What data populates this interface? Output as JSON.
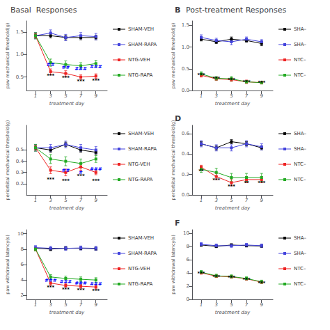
{
  "chart_data": [
    {
      "type": "line",
      "title": "Basal  Responses",
      "xlabel": "treatment day",
      "ylabel": "paw mechanical threshold(g)",
      "x": [
        1,
        3,
        5,
        7,
        9
      ],
      "xlim": [
        -0.2,
        10.5
      ],
      "xticks": [
        1,
        3,
        5,
        7,
        9
      ],
      "ylim": [
        0.2,
        1.75
      ],
      "yticks": [
        0.5,
        {
          "value": 1,
          "label": "1.0"
        },
        1.5
      ],
      "grid": false,
      "legend": "right",
      "marker": "square",
      "line_style": "solid",
      "series": [
        {
          "name": "SHAM-VEH",
          "color": "#000000",
          "values": [
            1.42,
            1.42,
            1.38,
            1.38,
            1.38
          ],
          "errors": [
            0.05,
            0.05,
            0.05,
            0.05,
            0.05
          ]
        },
        {
          "name": "SHAM-RAPA",
          "color": "#4444dd",
          "values": [
            1.42,
            1.48,
            1.38,
            1.42,
            1.4
          ],
          "errors": [
            0.07,
            0.07,
            0.07,
            0.07,
            0.07
          ]
        },
        {
          "name": "NTG-VEH",
          "color": "#ee2222",
          "values": [
            1.42,
            0.62,
            0.58,
            0.5,
            0.52
          ],
          "errors": [
            0.05,
            0.06,
            0.06,
            0.05,
            0.05
          ]
        },
        {
          "name": "NTG-RAPA",
          "color": "#22aa22",
          "values": [
            1.42,
            0.82,
            0.78,
            0.75,
            0.8
          ],
          "errors": [
            0.07,
            0.08,
            0.08,
            0.07,
            0.07
          ]
        }
      ],
      "annotations": [
        {
          "x": 3,
          "y": 0.47,
          "text": "***",
          "color": "black"
        },
        {
          "x": 5,
          "y": 0.43,
          "text": "***",
          "color": "black"
        },
        {
          "x": 7,
          "y": 0.35,
          "text": "***",
          "color": "black"
        },
        {
          "x": 9,
          "y": 0.37,
          "text": "***",
          "color": "black"
        },
        {
          "x": 3,
          "y": 0.72,
          "text": "##",
          "color": "blue"
        },
        {
          "x": 5,
          "y": 0.66,
          "text": "##",
          "color": "blue"
        },
        {
          "x": 7,
          "y": 0.63,
          "text": "###",
          "color": "blue"
        },
        {
          "x": 9,
          "y": 0.68,
          "text": "###",
          "color": "blue"
        }
      ]
    },
    {
      "type": "line",
      "title": "Post-treatment Responses",
      "subtitle": "B",
      "xlabel": "treatment day",
      "ylabel": "paw mechanical threshold(g)",
      "x": [
        1,
        3,
        5,
        7,
        9
      ],
      "xlim": [
        -0.2,
        10.5
      ],
      "xticks": [
        1,
        3,
        5,
        7,
        9
      ],
      "ylim": [
        0.0,
        1.6
      ],
      "yticks": [
        {
          "value": 0,
          "label": "0.0"
        },
        0.5,
        {
          "value": 1,
          "label": "1.0"
        },
        1.5
      ],
      "grid": false,
      "legend": "right",
      "marker": "square",
      "line_style": "solid",
      "series": [
        {
          "name": "SHA–",
          "color": "#000000",
          "values": [
            1.18,
            1.12,
            1.18,
            1.15,
            1.08
          ],
          "errors": [
            0.04,
            0.04,
            0.05,
            0.04,
            0.05
          ]
        },
        {
          "name": "SHA–",
          "color": "#4444dd",
          "values": [
            1.22,
            1.15,
            1.12,
            1.18,
            1.12
          ],
          "errors": [
            0.06,
            0.05,
            0.07,
            0.05,
            0.05
          ]
        },
        {
          "name": "NTC–",
          "color": "#ee2222",
          "values": [
            0.35,
            0.27,
            0.25,
            0.2,
            0.18
          ],
          "errors": [
            0.04,
            0.04,
            0.04,
            0.04,
            0.03
          ]
        },
        {
          "name": "NTC–",
          "color": "#22aa22",
          "values": [
            0.38,
            0.28,
            0.27,
            0.2,
            0.18
          ],
          "errors": [
            0.05,
            0.04,
            0.05,
            0.03,
            0.03
          ]
        }
      ],
      "annotations": [
        {
          "x": 1,
          "y": 0.29,
          "text": "***",
          "color": "black"
        },
        {
          "x": 3,
          "y": 0.21,
          "text": "***",
          "color": "black"
        },
        {
          "x": 5,
          "y": 0.19,
          "text": "***",
          "color": "black"
        },
        {
          "x": 7,
          "y": 0.14,
          "text": "***",
          "color": "black"
        },
        {
          "x": 9,
          "y": 0.12,
          "text": "***",
          "color": "black"
        }
      ]
    },
    {
      "type": "line",
      "xlabel": "treatment day",
      "ylabel": "periorbital mechanical threshold(g)",
      "x": [
        1,
        3,
        5,
        7,
        9
      ],
      "xlim": [
        -0.2,
        10.5
      ],
      "xticks": [
        1,
        3,
        5,
        7,
        9
      ],
      "ylim": [
        0.1,
        0.72
      ],
      "yticks": [
        0.2,
        0.3,
        0.4,
        0.5
      ],
      "grid": false,
      "legend": "right",
      "marker": "square",
      "line_style": "solid",
      "series": [
        {
          "name": "SHAM-VEH",
          "color": "#000000",
          "values": [
            0.52,
            0.5,
            0.55,
            0.5,
            0.48
          ],
          "errors": [
            0.02,
            0.02,
            0.02,
            0.02,
            0.02
          ]
        },
        {
          "name": "SHAM-RAPA",
          "color": "#4444dd",
          "values": [
            0.52,
            0.52,
            0.55,
            0.52,
            0.5
          ],
          "errors": [
            0.03,
            0.03,
            0.03,
            0.03,
            0.03
          ]
        },
        {
          "name": "NTG-VEH",
          "color": "#ee2222",
          "values": [
            0.52,
            0.32,
            0.3,
            0.35,
            0.3
          ],
          "errors": [
            0.02,
            0.03,
            0.03,
            0.03,
            0.02
          ]
        },
        {
          "name": "NTG-RAPA",
          "color": "#22aa22",
          "values": [
            0.52,
            0.42,
            0.4,
            0.38,
            0.42
          ],
          "errors": [
            0.03,
            0.04,
            0.04,
            0.04,
            0.03
          ]
        }
      ],
      "annotations": [
        {
          "x": 3,
          "y": 0.215,
          "text": "***",
          "color": "black"
        },
        {
          "x": 5,
          "y": 0.2,
          "text": "***",
          "color": "black"
        },
        {
          "x": 7,
          "y": 0.245,
          "text": "***",
          "color": "black"
        },
        {
          "x": 9,
          "y": 0.205,
          "text": "***",
          "color": "black"
        },
        {
          "x": 5,
          "y": 0.295,
          "text": "##",
          "color": "blue"
        },
        {
          "x": 7,
          "y": 0.275,
          "text": "#",
          "color": "blue"
        },
        {
          "x": 9,
          "y": 0.31,
          "text": "###",
          "color": "blue"
        }
      ]
    },
    {
      "type": "line",
      "subtitle": "D",
      "xlabel": "treatment day",
      "ylabel": "periorbital mechanical threshold(g)",
      "x": [
        1,
        3,
        5,
        7,
        9
      ],
      "xlim": [
        -0.2,
        10.5
      ],
      "xticks": [
        1,
        3,
        5,
        7,
        9
      ],
      "ylim": [
        0.0,
        0.68
      ],
      "yticks": [
        {
          "value": 0,
          "label": "0.0"
        },
        0.2,
        0.4,
        0.6
      ],
      "grid": false,
      "legend": "right",
      "marker": "square",
      "line_style": "solid",
      "series": [
        {
          "name": "SHA–",
          "color": "#000000",
          "values": [
            0.5,
            0.46,
            0.52,
            0.5,
            0.46
          ],
          "errors": [
            0.02,
            0.02,
            0.02,
            0.02,
            0.02
          ]
        },
        {
          "name": "SHA–",
          "color": "#4444dd",
          "values": [
            0.5,
            0.46,
            0.46,
            0.5,
            0.47
          ],
          "errors": [
            0.03,
            0.03,
            0.03,
            0.03,
            0.03
          ]
        },
        {
          "name": "NTC–",
          "color": "#ee2222",
          "values": [
            0.27,
            0.18,
            0.12,
            0.15,
            0.15
          ],
          "errors": [
            0.02,
            0.03,
            0.03,
            0.03,
            0.03
          ]
        },
        {
          "name": "NTC–",
          "color": "#22aa22",
          "values": [
            0.25,
            0.22,
            0.17,
            0.17,
            0.17
          ],
          "errors": [
            0.03,
            0.04,
            0.04,
            0.04,
            0.04
          ]
        }
      ],
      "annotations": [
        {
          "x": 1,
          "y": 0.21,
          "text": "**",
          "color": "black"
        },
        {
          "x": 3,
          "y": 0.12,
          "text": "***",
          "color": "black"
        },
        {
          "x": 5,
          "y": 0.06,
          "text": "***",
          "color": "black"
        },
        {
          "x": 7,
          "y": 0.09,
          "text": "**",
          "color": "black"
        },
        {
          "x": 9,
          "y": 0.09,
          "text": "***",
          "color": "black"
        }
      ]
    },
    {
      "type": "line",
      "xlabel": "treatment day",
      "ylabel": "paw withdrawal latency(s)",
      "x": [
        1,
        3,
        5,
        7,
        9
      ],
      "xlim": [
        -0.2,
        10.5
      ],
      "xticks": [
        1,
        3,
        5,
        7,
        9
      ],
      "ylim": [
        1.5,
        10.5
      ],
      "yticks": [
        2,
        4,
        6,
        8,
        10
      ],
      "grid": false,
      "legend": "right",
      "marker": "square",
      "line_style": "solid",
      "series": [
        {
          "name": "SHAM-VEH",
          "color": "#000000",
          "values": [
            8.1,
            8.0,
            8.1,
            8.1,
            8.05
          ],
          "errors": [
            0.2,
            0.2,
            0.2,
            0.2,
            0.2
          ]
        },
        {
          "name": "SHAM-RAPA",
          "color": "#4444dd",
          "values": [
            8.2,
            8.1,
            8.1,
            8.15,
            8.1
          ],
          "errors": [
            0.25,
            0.25,
            0.25,
            0.25,
            0.25
          ]
        },
        {
          "name": "NTG-VEH",
          "color": "#ee2222",
          "values": [
            8.0,
            3.6,
            3.3,
            3.2,
            3.1
          ],
          "errors": [
            0.2,
            0.25,
            0.25,
            0.25,
            0.25
          ]
        },
        {
          "name": "NTG-RAPA",
          "color": "#22aa22",
          "values": [
            8.0,
            4.4,
            4.2,
            4.1,
            4.0
          ],
          "errors": [
            0.25,
            0.3,
            0.3,
            0.3,
            0.3
          ]
        }
      ],
      "annotations": [
        {
          "x": 3,
          "y": 2.7,
          "text": "***",
          "color": "black"
        },
        {
          "x": 5,
          "y": 2.45,
          "text": "***",
          "color": "black"
        },
        {
          "x": 7,
          "y": 2.35,
          "text": "***",
          "color": "black"
        },
        {
          "x": 9,
          "y": 2.25,
          "text": "***",
          "color": "black"
        },
        {
          "x": 3,
          "y": 3.6,
          "text": "###",
          "color": "blue"
        },
        {
          "x": 5,
          "y": 3.4,
          "text": "###",
          "color": "blue"
        },
        {
          "x": 7,
          "y": 3.3,
          "text": "###",
          "color": "blue"
        },
        {
          "x": 9,
          "y": 3.2,
          "text": "###",
          "color": "blue"
        }
      ]
    },
    {
      "type": "line",
      "subtitle": "F",
      "xlabel": "treatment day",
      "ylabel": "paw withdrawal latency(s)",
      "x": [
        1,
        3,
        5,
        7,
        9
      ],
      "xlim": [
        -0.2,
        10.5
      ],
      "xticks": [
        1,
        3,
        5,
        7,
        9
      ],
      "ylim": [
        0.0,
        10.5
      ],
      "yticks": [
        0,
        2,
        4,
        6,
        8,
        10
      ],
      "grid": false,
      "legend": "right",
      "marker": "square",
      "line_style": "solid",
      "series": [
        {
          "name": "SHA–",
          "color": "#000000",
          "values": [
            8.2,
            8.0,
            8.2,
            8.1,
            8.05
          ],
          "errors": [
            0.2,
            0.2,
            0.2,
            0.2,
            0.2
          ]
        },
        {
          "name": "SHA–",
          "color": "#4444dd",
          "values": [
            8.3,
            8.1,
            8.1,
            8.2,
            8.1
          ],
          "errors": [
            0.25,
            0.25,
            0.25,
            0.25,
            0.25
          ]
        },
        {
          "name": "NTC–",
          "color": "#ee2222",
          "values": [
            4.0,
            3.5,
            3.4,
            3.1,
            2.6
          ],
          "errors": [
            0.2,
            0.2,
            0.2,
            0.2,
            0.2
          ]
        },
        {
          "name": "NTC–",
          "color": "#22aa22",
          "values": [
            4.1,
            3.55,
            3.45,
            3.15,
            2.65
          ],
          "errors": [
            0.25,
            0.25,
            0.25,
            0.25,
            0.25
          ]
        }
      ],
      "annotations": [
        {
          "x": 1,
          "y": 3.5,
          "text": "***",
          "color": "black"
        },
        {
          "x": 3,
          "y": 2.95,
          "text": "***",
          "color": "black"
        },
        {
          "x": 5,
          "y": 2.9,
          "text": "***",
          "color": "black"
        },
        {
          "x": 7,
          "y": 2.6,
          "text": "***",
          "color": "black"
        },
        {
          "x": 9,
          "y": 2.1,
          "text": "***",
          "color": "black"
        }
      ]
    }
  ]
}
